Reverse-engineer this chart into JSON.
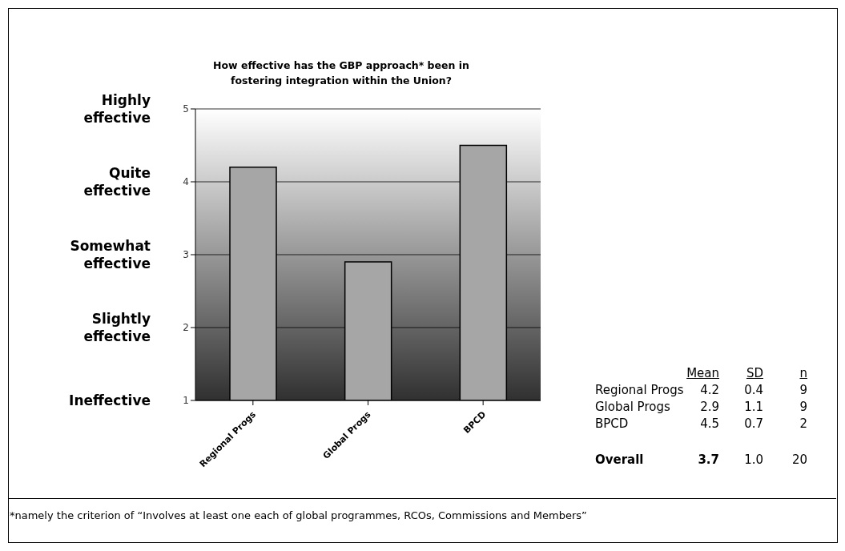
{
  "chart_data": {
    "type": "bar",
    "title": "How effective has the GBP approach* been in fostering integration within the Union?",
    "categories": [
      "Regional Progs",
      "Global Progs",
      "BPCD"
    ],
    "values": [
      4.2,
      2.9,
      4.5
    ],
    "color": "#a6a6a6",
    "ylim": [
      1,
      5
    ],
    "yticks": [
      1,
      2,
      3,
      4,
      5
    ],
    "grid": "y",
    "legend": false,
    "annotations": [
      "*namely the criterion of “Involves at least one each of global programmes, RCOs, Commissions and Members”",
      "Ineffective",
      "Slightly effective",
      "Somewhat effective",
      "Quite effective",
      "Highly effective",
      "Mean",
      "SD",
      "n",
      "Regional Progs",
      "4.2",
      "0.4",
      "9",
      "Global Progs",
      "2.9",
      "1.1",
      "9",
      "BPCD",
      "4.5",
      "0.7",
      "2",
      "Overall",
      "3.7",
      "1.0",
      "20"
    ]
  }
}
